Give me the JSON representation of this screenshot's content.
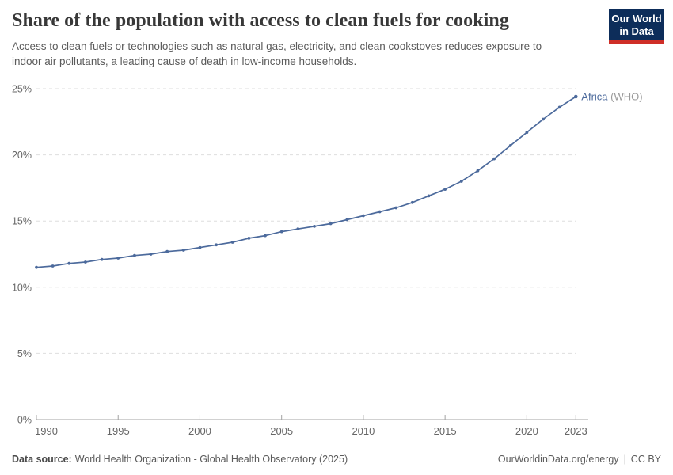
{
  "header": {
    "title": "Share of the population with access to clean fuels for cooking",
    "subtitle_lines": [
      "Access to clean fuels or technologies such as natural gas, electricity, and clean cookstoves reduces exposure to",
      "indoor air pollutants, a leading cause of death in low-income households."
    ]
  },
  "logo": {
    "line1": "Our World",
    "line2": "in Data",
    "bg_color": "#0d2d5a",
    "stripe_color": "#cf2e27"
  },
  "chart_data": {
    "type": "line",
    "title": "Share of the population with access to clean fuels for cooking",
    "xlabel": "",
    "ylabel": "",
    "x": [
      1990,
      1991,
      1992,
      1993,
      1994,
      1995,
      1996,
      1997,
      1998,
      1999,
      2000,
      2001,
      2002,
      2003,
      2004,
      2005,
      2006,
      2007,
      2008,
      2009,
      2010,
      2011,
      2012,
      2013,
      2014,
      2015,
      2016,
      2017,
      2018,
      2019,
      2020,
      2021,
      2022,
      2023
    ],
    "series": [
      {
        "name": "Africa",
        "annotation": "(WHO)",
        "color": "#4C6A9C",
        "values": [
          11.5,
          11.6,
          11.8,
          11.9,
          12.1,
          12.2,
          12.4,
          12.5,
          12.7,
          12.8,
          13.0,
          13.2,
          13.4,
          13.7,
          13.9,
          14.2,
          14.4,
          14.6,
          14.8,
          15.1,
          15.4,
          15.7,
          16.0,
          16.4,
          16.9,
          17.4,
          18.0,
          18.8,
          19.7,
          20.7,
          21.7,
          22.7,
          23.6,
          24.4
        ]
      }
    ],
    "xlim": [
      1990,
      2023
    ],
    "ylim": [
      0,
      25
    ],
    "xticks": [
      1990,
      1995,
      2000,
      2005,
      2010,
      2015,
      2020,
      2023
    ],
    "yticks": [
      0,
      5,
      10,
      15,
      20,
      25
    ],
    "ytick_suffix": "%",
    "grid": "horizontal-dashed",
    "legend": "end-of-line-label"
  },
  "footer": {
    "source_label": "Data source:",
    "source_text": "World Health Organization - Global Health Observatory (2025)",
    "url_text": "OurWorldinData.org/energy",
    "separator": "|",
    "license_text": "CC BY"
  },
  "colors": {
    "series": "#4C6A9C",
    "grid": "#dedede",
    "axis": "#a3a3a3",
    "tick_label": "#666666",
    "title": "#383838",
    "subtitle": "#5b5b5b",
    "annotation": "#999999"
  }
}
